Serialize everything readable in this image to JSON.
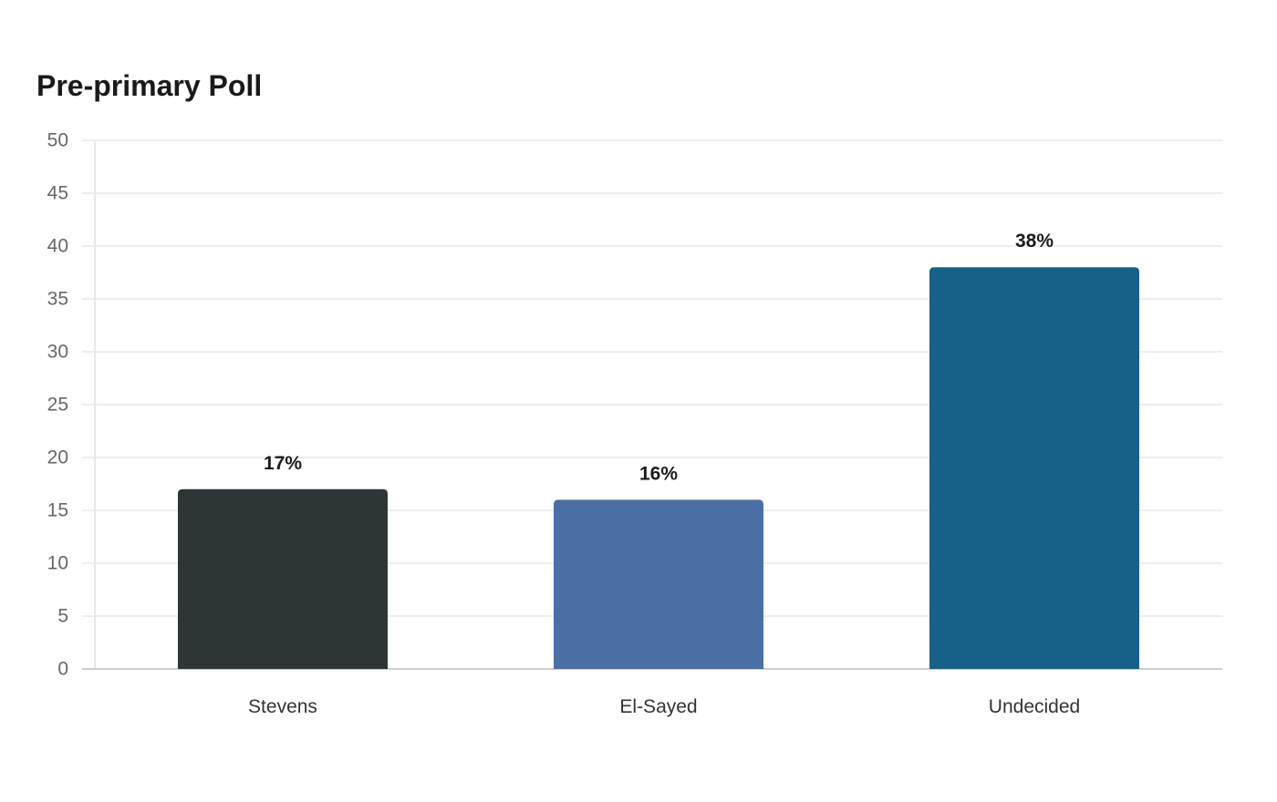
{
  "chart_data": {
    "type": "bar",
    "title": "Pre-primary Poll",
    "categories": [
      "Stevens",
      "El-Sayed",
      "Undecided"
    ],
    "values": [
      17,
      16,
      38
    ],
    "value_labels": [
      "17%",
      "16%",
      "38%"
    ],
    "colors": [
      "#2e3537",
      "#4a6fa5",
      "#176087"
    ],
    "ylim": [
      0,
      50
    ],
    "yticks": [
      "0",
      "5",
      "10",
      "15",
      "20",
      "25",
      "30",
      "35",
      "40",
      "45",
      "50"
    ],
    "xlabel": "",
    "ylabel": "",
    "grid": true,
    "legend": "none"
  },
  "colors": {
    "grid": "#e8e8e8",
    "axis": "#cccccc"
  }
}
